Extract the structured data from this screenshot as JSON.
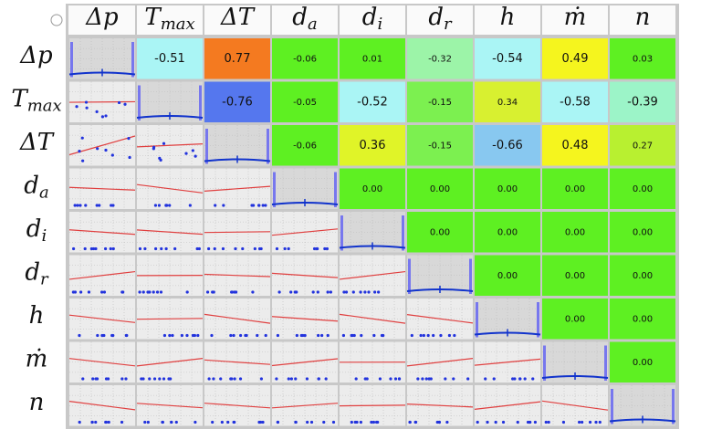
{
  "labels": [
    {
      "base": "Δp"
    },
    {
      "base": "T",
      "sub": "max"
    },
    {
      "base": "ΔT"
    },
    {
      "base": "d",
      "sub": "a"
    },
    {
      "base": "d",
      "sub": "i"
    },
    {
      "base": "d",
      "sub": "r"
    },
    {
      "base": "h"
    },
    {
      "base": "ṁ"
    },
    {
      "base": "n"
    }
  ],
  "cells": [
    [
      {
        "value": "-0.51",
        "color": "#aaf5f5"
      },
      {
        "value": "0.77",
        "color": "#f47a20"
      },
      {
        "value": "-0.06",
        "color": "#5ef022"
      },
      {
        "value": "0.01",
        "color": "#5ef022"
      },
      {
        "value": "-0.32",
        "color": "#9cf4a8"
      },
      {
        "value": "-0.54",
        "color": "#aaf5f5"
      },
      {
        "value": "0.49",
        "color": "#f5f51e"
      },
      {
        "value": "0.03",
        "color": "#5ef022"
      }
    ],
    [
      {
        "value": "-0.76",
        "color": "#5577ee"
      },
      {
        "value": "-0.05",
        "color": "#5ef022"
      },
      {
        "value": "-0.52",
        "color": "#aaf5f5"
      },
      {
        "value": "-0.15",
        "color": "#7cf050"
      },
      {
        "value": "0.34",
        "color": "#d8f030"
      },
      {
        "value": "-0.58",
        "color": "#aaf5f5"
      },
      {
        "value": "-0.39",
        "color": "#9cf4c8"
      }
    ],
    [
      {
        "value": "-0.06",
        "color": "#5ef022"
      },
      {
        "value": "0.36",
        "color": "#e0f428"
      },
      {
        "value": "-0.15",
        "color": "#7cf050"
      },
      {
        "value": "-0.66",
        "color": "#88c8f0"
      },
      {
        "value": "0.48",
        "color": "#f5f51e"
      },
      {
        "value": "0.27",
        "color": "#b8f030"
      }
    ],
    [
      {
        "value": "0.00",
        "color": "#5ef022"
      },
      {
        "value": "0.00",
        "color": "#5ef022"
      },
      {
        "value": "0.00",
        "color": "#5ef022"
      },
      {
        "value": "0.00",
        "color": "#5ef022"
      },
      {
        "value": "0.00",
        "color": "#5ef022"
      }
    ],
    [
      {
        "value": "0.00",
        "color": "#5ef022"
      },
      {
        "value": "0.00",
        "color": "#5ef022"
      },
      {
        "value": "0.00",
        "color": "#5ef022"
      },
      {
        "value": "0.00",
        "color": "#5ef022"
      }
    ],
    [
      {
        "value": "0.00",
        "color": "#5ef022"
      },
      {
        "value": "0.00",
        "color": "#5ef022"
      },
      {
        "value": "0.00",
        "color": "#5ef022"
      }
    ],
    [
      {
        "value": "0.00",
        "color": "#5ef022"
      },
      {
        "value": "0.00",
        "color": "#5ef022"
      }
    ],
    [
      {
        "value": "0.00",
        "color": "#5ef022"
      }
    ]
  ]
}
